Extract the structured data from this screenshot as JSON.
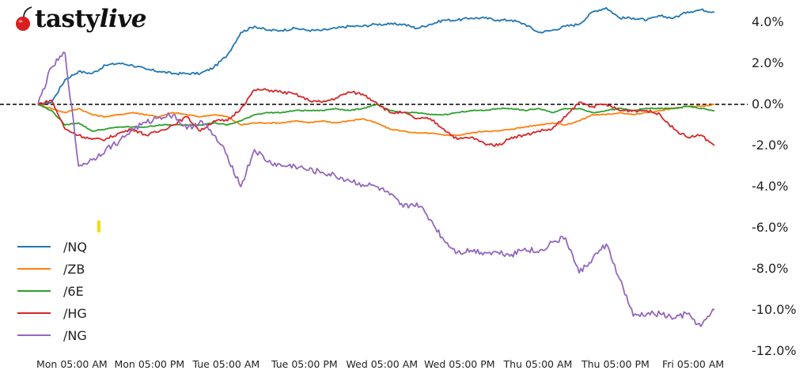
{
  "brand": {
    "name_plain": "tasty",
    "name_italic": "live",
    "icon": "cherry-icon"
  },
  "chart_data": {
    "type": "line",
    "title": "",
    "xlabel": "",
    "ylabel": "",
    "y_axis_position": "right",
    "ylim": [
      -12.0,
      5.0
    ],
    "y_ticks": [
      "4.0%",
      "2.0%",
      "0.0%",
      "-2.0%",
      "-4.0%",
      "-6.0%",
      "-8.0%",
      "-10.0%",
      "-12.0%"
    ],
    "y_tick_values": [
      4,
      2,
      0,
      -2,
      -4,
      -6,
      -8,
      -10,
      -12
    ],
    "x_ticks": [
      "Mon 05:00 AM",
      "Mon 05:00 PM",
      "Tue 05:00 AM",
      "Tue 05:00 PM",
      "Wed 05:00 AM",
      "Wed 05:00 PM",
      "Thu 05:00 AM",
      "Thu 05:00 PM",
      "Fri 05:00 AM"
    ],
    "reference_line": {
      "value": 0.0,
      "style": "dashed",
      "color": "#000000"
    },
    "legend_position": "lower left",
    "grid": false,
    "x": [
      0,
      2,
      4,
      6,
      8,
      10,
      12,
      14,
      16,
      18,
      20,
      22,
      24,
      26,
      28,
      30,
      32,
      34,
      36,
      38,
      40,
      42,
      44,
      46,
      48,
      50,
      52,
      54,
      56,
      58,
      60,
      62,
      64,
      66,
      68,
      70,
      72,
      74,
      76,
      78,
      80,
      82,
      84,
      86,
      88,
      90,
      92,
      94,
      96,
      98,
      100
    ],
    "series": [
      {
        "name": "/NQ",
        "color": "#1f77b4",
        "values": [
          0.0,
          0.1,
          1.2,
          1.6,
          1.5,
          1.9,
          2.0,
          1.9,
          1.7,
          1.6,
          1.5,
          1.5,
          1.5,
          1.8,
          2.4,
          3.5,
          3.8,
          3.6,
          3.6,
          3.7,
          3.6,
          3.6,
          3.7,
          3.8,
          3.8,
          3.9,
          3.9,
          3.9,
          3.7,
          3.9,
          4.1,
          4.1,
          4.2,
          4.2,
          4.1,
          4.1,
          3.9,
          3.5,
          3.6,
          3.8,
          3.9,
          4.5,
          4.7,
          4.2,
          4.2,
          4.1,
          4.3,
          4.2,
          4.5,
          4.6,
          4.5
        ]
      },
      {
        "name": "/ZB",
        "color": "#ff7f0e",
        "values": [
          0.0,
          -0.2,
          -0.4,
          -0.2,
          -0.5,
          -0.6,
          -0.5,
          -0.4,
          -0.5,
          -0.6,
          -0.4,
          -0.5,
          -0.6,
          -0.5,
          -0.6,
          -1.0,
          -0.9,
          -0.9,
          -0.9,
          -0.8,
          -0.9,
          -0.8,
          -0.9,
          -0.8,
          -0.7,
          -0.9,
          -1.2,
          -1.3,
          -1.4,
          -1.4,
          -1.5,
          -1.5,
          -1.4,
          -1.3,
          -1.3,
          -1.2,
          -1.1,
          -1.0,
          -0.9,
          -1.0,
          -0.8,
          -0.5,
          -0.5,
          -0.4,
          -0.5,
          -0.4,
          -0.3,
          -0.2,
          -0.1,
          -0.1,
          0.0
        ]
      },
      {
        "name": "/6E",
        "color": "#2ca02c",
        "values": [
          0.0,
          -0.3,
          -1.0,
          -0.9,
          -1.3,
          -1.2,
          -1.1,
          -1.1,
          -1.1,
          -1.0,
          -1.0,
          -1.0,
          -1.0,
          -0.9,
          -1.0,
          -0.8,
          -0.5,
          -0.4,
          -0.4,
          -0.3,
          -0.3,
          -0.3,
          -0.2,
          -0.3,
          -0.2,
          0.0,
          -0.3,
          -0.4,
          -0.4,
          -0.5,
          -0.5,
          -0.4,
          -0.3,
          -0.3,
          -0.2,
          -0.2,
          -0.3,
          -0.2,
          -0.4,
          -0.2,
          -0.2,
          -0.4,
          -0.3,
          -0.2,
          -0.3,
          -0.2,
          -0.2,
          -0.2,
          -0.1,
          -0.2,
          -0.3
        ]
      },
      {
        "name": "/HG",
        "color": "#d62728",
        "values": [
          0.0,
          0.2,
          -1.2,
          -1.5,
          -1.7,
          -1.7,
          -1.4,
          -1.2,
          -1.5,
          -1.3,
          -1.0,
          -0.6,
          -1.3,
          -0.8,
          -0.8,
          -0.2,
          0.7,
          0.7,
          0.6,
          0.5,
          0.2,
          0.1,
          0.3,
          0.6,
          0.5,
          0.1,
          -0.4,
          -0.4,
          -0.7,
          -0.7,
          -1.2,
          -1.7,
          -1.6,
          -1.9,
          -2.0,
          -1.6,
          -1.5,
          -1.3,
          -1.2,
          -0.6,
          0.1,
          -0.1,
          0.0,
          -0.3,
          -0.3,
          -0.3,
          -0.5,
          -1.2,
          -1.6,
          -1.5,
          -2.0
        ]
      },
      {
        "name": "/NG",
        "color": "#9467bd",
        "values": [
          0.0,
          1.8,
          2.5,
          -3.0,
          -2.7,
          -2.2,
          -1.8,
          -1.2,
          -0.9,
          -0.6,
          -0.5,
          -1.2,
          -0.8,
          -1.5,
          -2.5,
          -4.0,
          -2.2,
          -2.8,
          -3.0,
          -3.0,
          -3.2,
          -3.3,
          -3.5,
          -3.7,
          -3.9,
          -4.0,
          -4.4,
          -5.0,
          -4.8,
          -5.6,
          -6.6,
          -7.2,
          -7.1,
          -7.2,
          -7.2,
          -7.3,
          -7.0,
          -7.2,
          -6.7,
          -6.5,
          -8.2,
          -7.5,
          -6.8,
          -8.5,
          -10.3,
          -10.2,
          -10.2,
          -10.4,
          -10.2,
          -10.8,
          -10.0
        ]
      }
    ]
  }
}
